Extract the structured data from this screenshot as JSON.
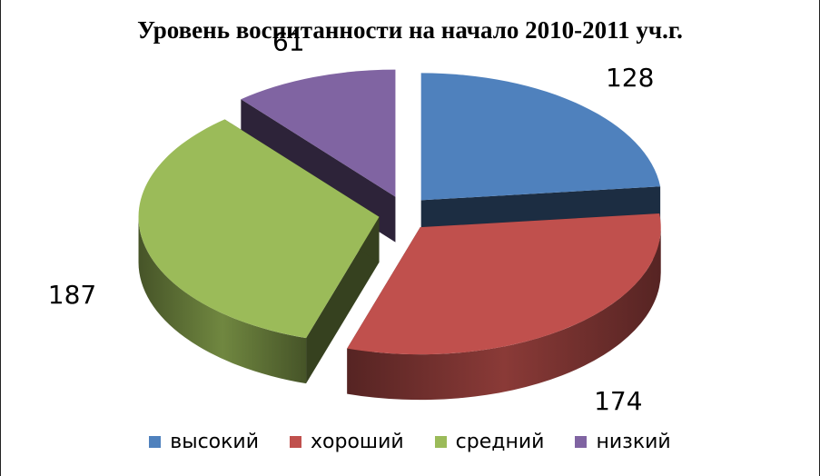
{
  "chart_data": {
    "type": "pie",
    "title": "Уровень воспитанности на начало 2010-2011 уч.г.",
    "categories": [
      "высокий",
      "хороший",
      "средний",
      "низкий"
    ],
    "values": [
      128,
      174,
      187,
      61
    ],
    "colors": [
      "#4F81BD",
      "#C0504D",
      "#9BBB59",
      "#8064A2"
    ],
    "exploded": true,
    "three_d": true,
    "legend_position": "bottom"
  }
}
